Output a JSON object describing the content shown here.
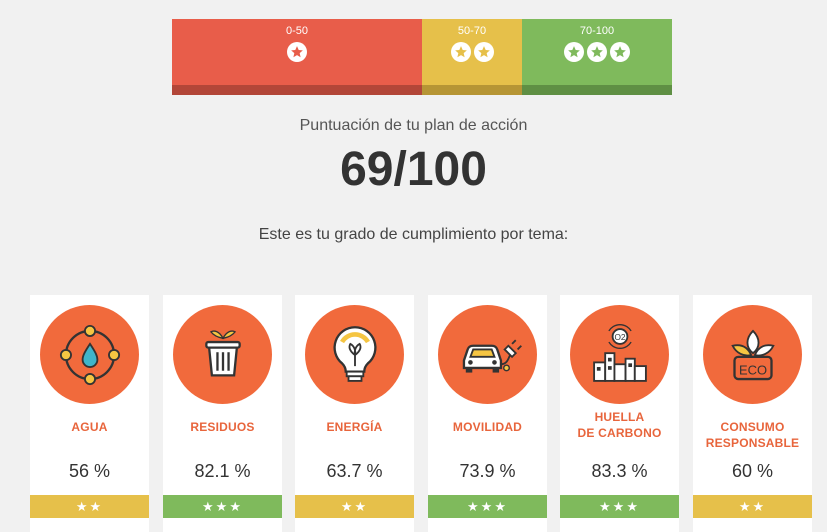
{
  "score_bar": {
    "segments": [
      {
        "range": "0-50",
        "stars": 1,
        "color": "#e85d4a"
      },
      {
        "range": "50-70",
        "stars": 2,
        "color": "#e6c04a"
      },
      {
        "range": "70-100",
        "stars": 3,
        "color": "#7fba5c"
      }
    ]
  },
  "header": {
    "subtitle": "Puntuación de tu plan de acción",
    "score": "69/100",
    "grade_text": "Este es tu grado de cumplimiento por tema:"
  },
  "cards": [
    {
      "icon": "water-drop-icon",
      "title": "AGUA",
      "percent": "56 %",
      "rating": "★★",
      "level": "two"
    },
    {
      "icon": "trash-bin-icon",
      "title": "RESIDUOS",
      "percent": "82.1 %",
      "rating": "★★★",
      "level": "three"
    },
    {
      "icon": "light-bulb-icon",
      "title": "ENERGÍA",
      "percent": "63.7 %",
      "rating": "★★",
      "level": "two"
    },
    {
      "icon": "electric-car-icon",
      "title": "MOVILIDAD",
      "percent": "73.9 %",
      "rating": "★★★",
      "level": "three"
    },
    {
      "icon": "city-co2-icon",
      "title_lines": [
        "HUELLA",
        "DE CARBONO"
      ],
      "percent": "83.3 %",
      "rating": "★★★",
      "level": "three"
    },
    {
      "icon": "eco-leaves-icon",
      "title_lines": [
        "CONSUMO",
        "RESPONSABLE"
      ],
      "percent": "60 %",
      "rating": "★★",
      "level": "two"
    }
  ]
}
